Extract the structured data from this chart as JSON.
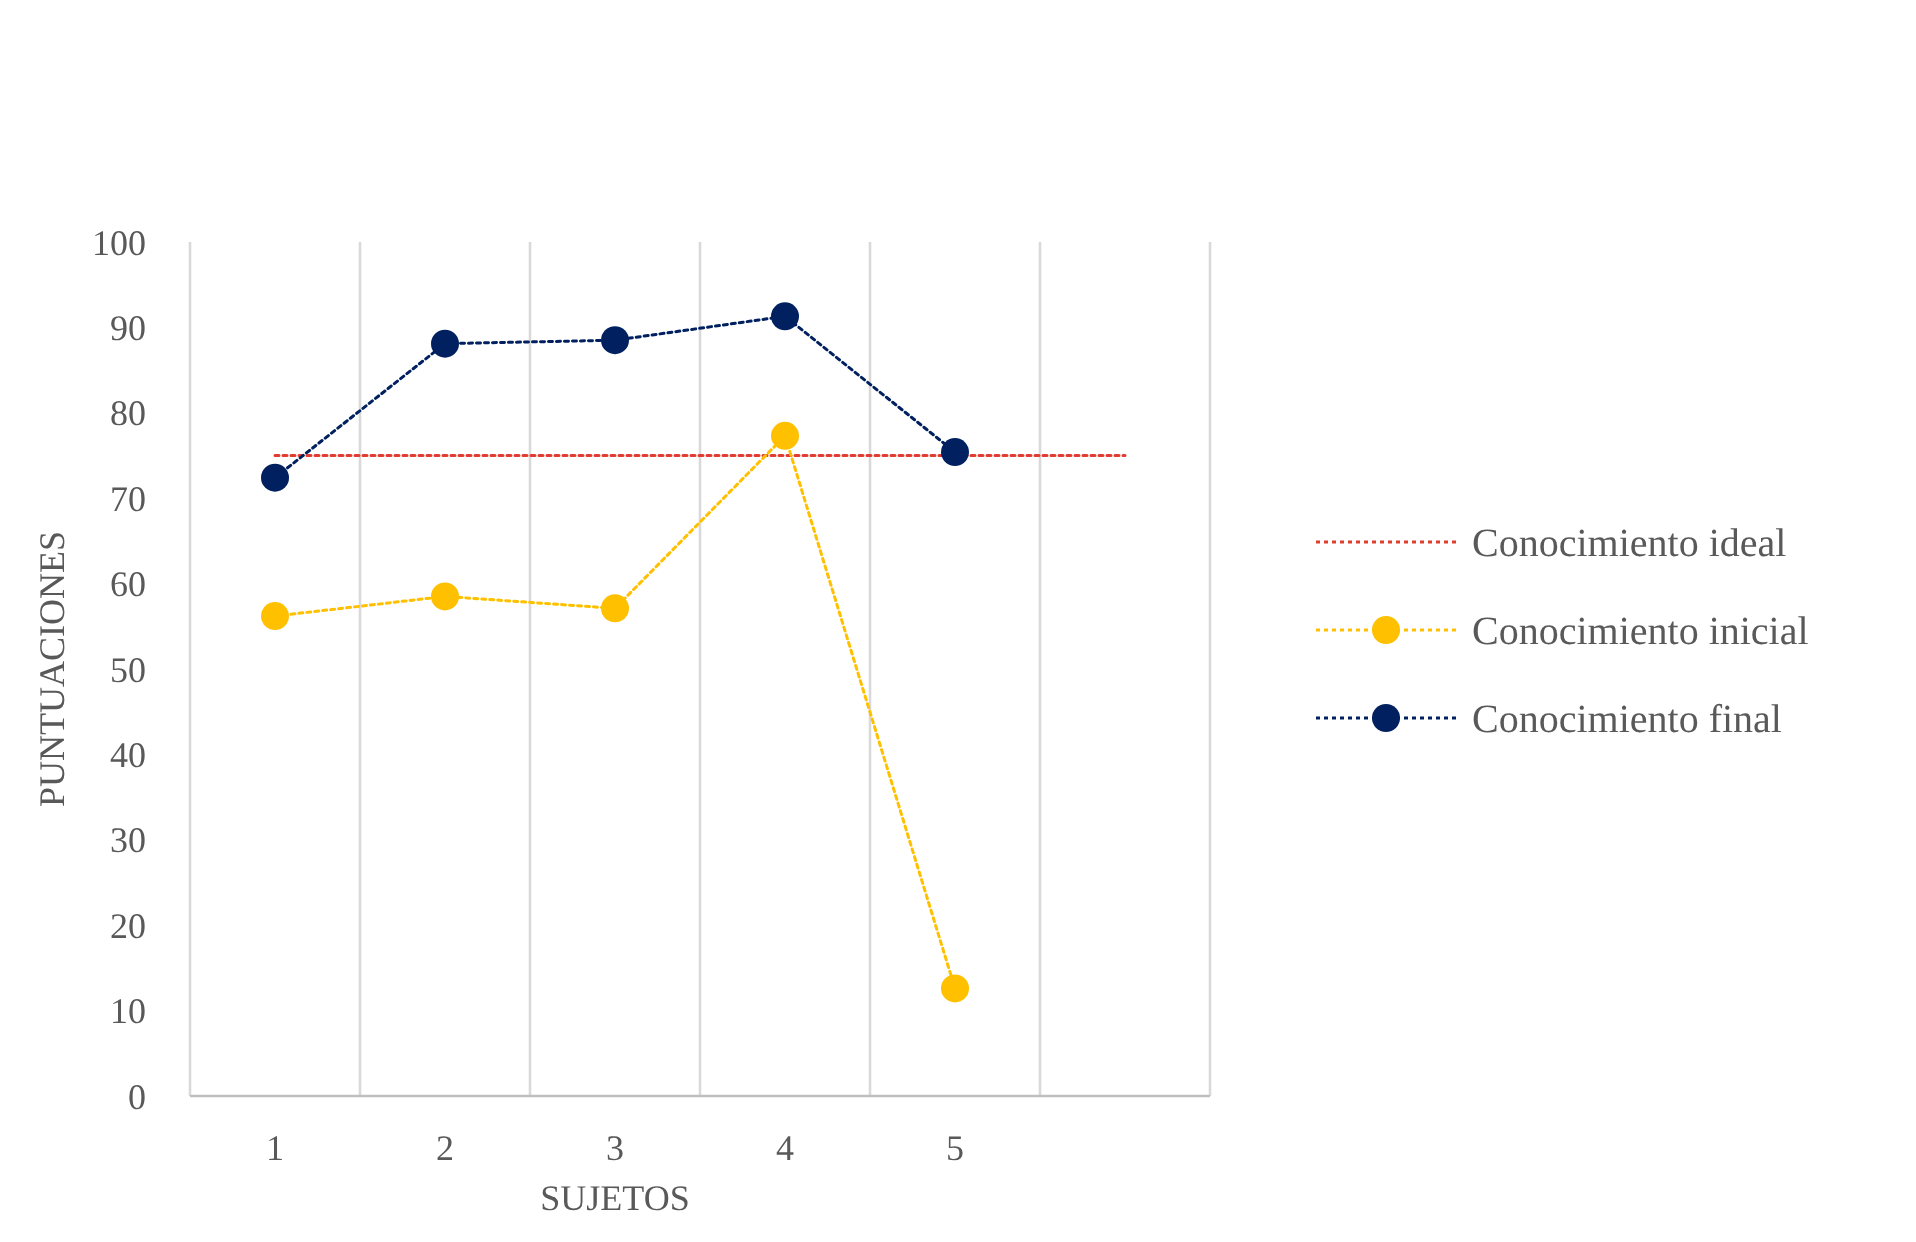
{
  "chart_data": {
    "type": "line",
    "xlabel": "SUJETOS",
    "ylabel": "PUNTUACIONES",
    "categories": [
      "1",
      "2",
      "3",
      "4",
      "5",
      null
    ],
    "series": [
      {
        "name": "Conocimiento ideal",
        "color": "#e03c31",
        "values": [
          75,
          75,
          75,
          75,
          75,
          75
        ],
        "marker": "none",
        "line_style": "dotted"
      },
      {
        "name": "Conocimiento inicial",
        "color": "#ffc000",
        "values": [
          56.2,
          58.5,
          57.1,
          77.3,
          12.6,
          null
        ],
        "marker": "circle",
        "line_style": "dotted"
      },
      {
        "name": "Conocimiento final",
        "color": "#002060",
        "values": [
          72.4,
          88.1,
          88.5,
          91.3,
          75.4,
          null
        ],
        "marker": "circle",
        "line_style": "dotted"
      }
    ],
    "ylim": [
      0,
      100
    ],
    "yticks": [
      0,
      10,
      20,
      30,
      40,
      50,
      60,
      70,
      80,
      90,
      100
    ],
    "grid": "x",
    "legend": "right"
  }
}
